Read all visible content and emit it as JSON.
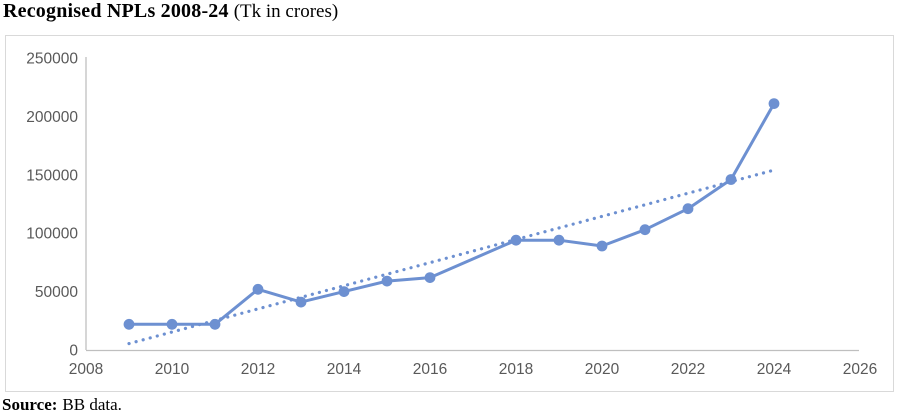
{
  "title": {
    "main": "Recognised NPLs 2008-24",
    "sub": "(Tk in crores)"
  },
  "source": {
    "label": "Source:",
    "text": "BB data."
  },
  "chart_data": {
    "type": "line",
    "title": "Recognised NPLs 2008-24 (Tk in crores)",
    "xlabel": "",
    "ylabel": "",
    "xlim": [
      2008,
      2026
    ],
    "ylim": [
      0,
      250000
    ],
    "x_ticks": [
      2008,
      2010,
      2012,
      2014,
      2016,
      2018,
      2020,
      2022,
      2024,
      2026
    ],
    "y_ticks": [
      0,
      50000,
      100000,
      150000,
      200000,
      250000
    ],
    "grid": false,
    "legend": "none",
    "series": [
      {
        "name": "Recognised NPLs (Tk in crores)",
        "marker": "circle",
        "points": [
          {
            "year": 2009,
            "value": 22000
          },
          {
            "year": 2010,
            "value": 22000
          },
          {
            "year": 2011,
            "value": 22000
          },
          {
            "year": 2012,
            "value": 52000
          },
          {
            "year": 2013,
            "value": 41000
          },
          {
            "year": 2014,
            "value": 50000
          },
          {
            "year": 2015,
            "value": 59000
          },
          {
            "year": 2016,
            "value": 62000
          },
          {
            "year": 2018,
            "value": 94000
          },
          {
            "year": 2019,
            "value": 94000
          },
          {
            "year": 2020,
            "value": 89000
          },
          {
            "year": 2021,
            "value": 103000
          },
          {
            "year": 2022,
            "value": 121000
          },
          {
            "year": 2023,
            "value": 146000
          },
          {
            "year": 2024,
            "value": 211000
          }
        ],
        "missing_years": [
          2017
        ]
      }
    ],
    "trendline": {
      "type": "linear",
      "style": "dotted",
      "x1": 2009,
      "y1": 5500,
      "x2": 2024,
      "y2": 154000
    },
    "colors": {
      "series": "#6d90d1",
      "trendline": "#6d90d1",
      "axis_line": "#bfbfbf",
      "tick_text": "#595959",
      "frame_border": "#d9d9d9"
    }
  }
}
